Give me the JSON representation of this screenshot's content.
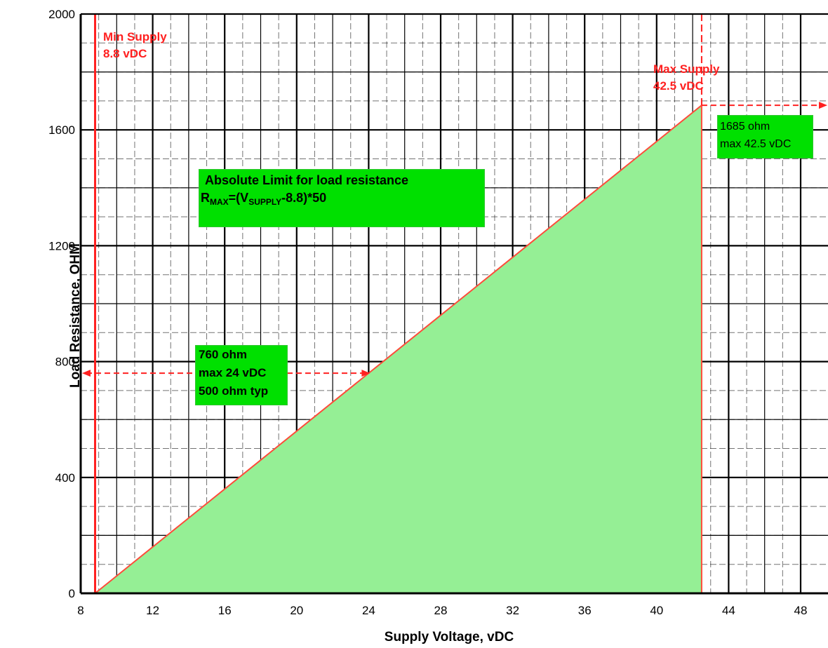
{
  "colors": {
    "grid_major": "#000000",
    "grid_minor": "#000000",
    "fill": "#95ef95",
    "limit_line": "#ff4b3a",
    "annotation_red": "#ff2020",
    "box_green": "#00e000"
  },
  "chart_data": {
    "type": "area",
    "title": "",
    "xlabel": "Supply Voltage, vDC",
    "ylabel": "Load Resistance, OHM",
    "xlim": [
      8,
      49
    ],
    "ylim": [
      0,
      2000
    ],
    "x_ticks": [
      8,
      12,
      16,
      20,
      24,
      28,
      32,
      36,
      40,
      44,
      48
    ],
    "y_ticks": [
      0,
      400,
      800,
      1200,
      1600,
      2000
    ],
    "x_tick_labels": [
      "8",
      "12",
      "16",
      "20",
      "24",
      "28",
      "32",
      "36",
      "40",
      "44",
      "48"
    ],
    "y_tick_labels": [
      "0",
      "400",
      "800",
      "1200",
      "1600",
      "2000"
    ],
    "grid": true,
    "series": [
      {
        "x": [
          8.8,
          42.5
        ],
        "y": [
          0,
          1685
        ]
      }
    ],
    "reference_lines": {
      "min_supply": {
        "x": 8.8,
        "label_line1": "Min Supply",
        "label_line2": "8.8 vDC"
      },
      "max_supply": {
        "x": 42.5,
        "label_line1": "Max Supply",
        "label_line2": "42.5 vDC"
      },
      "at_24v": {
        "y": 760,
        "x_end": 24
      },
      "at_42v": {
        "y": 1685,
        "x_start": 42.5
      }
    },
    "annotations": {
      "formula_box": {
        "line1": "Absolute Limit for load resistance",
        "r": "R",
        "r_sub": "MAX",
        "eq_open": "=(V",
        "v_sub": "SUPPLY",
        "eq_close": "-8.8)*50"
      },
      "box_24v": {
        "line1": "760 ohm",
        "line2": "max 24 vDC",
        "line3": "500 ohm typ"
      },
      "box_42v": {
        "line1": "1685 ohm",
        "line2": "max 42.5 vDC"
      }
    }
  }
}
